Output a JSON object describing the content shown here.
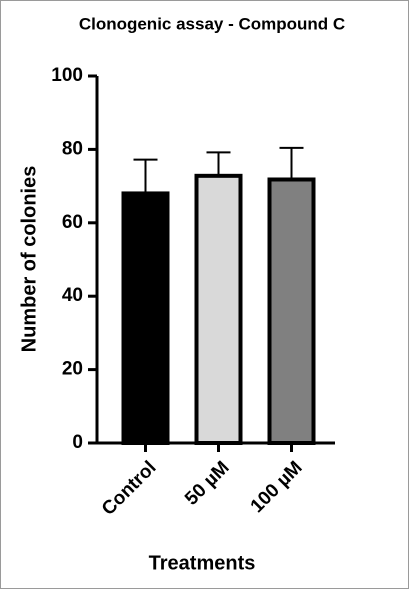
{
  "chart_data": {
    "type": "bar",
    "title": "Clonogenic assay - Compound C",
    "x_label": "Treatments",
    "y_label": "Number of colonies",
    "categories": [
      "Control",
      "50 µM",
      "100 µM"
    ],
    "values": [
      68,
      72.8,
      71.8
    ],
    "errors": [
      9.2,
      6.4,
      8.6
    ],
    "colors": [
      "#000000",
      "#d9d9d9",
      "#808080"
    ],
    "ylim": [
      0,
      100
    ],
    "yticks": [
      0,
      20,
      40,
      60,
      80,
      100
    ],
    "grid": false
  }
}
